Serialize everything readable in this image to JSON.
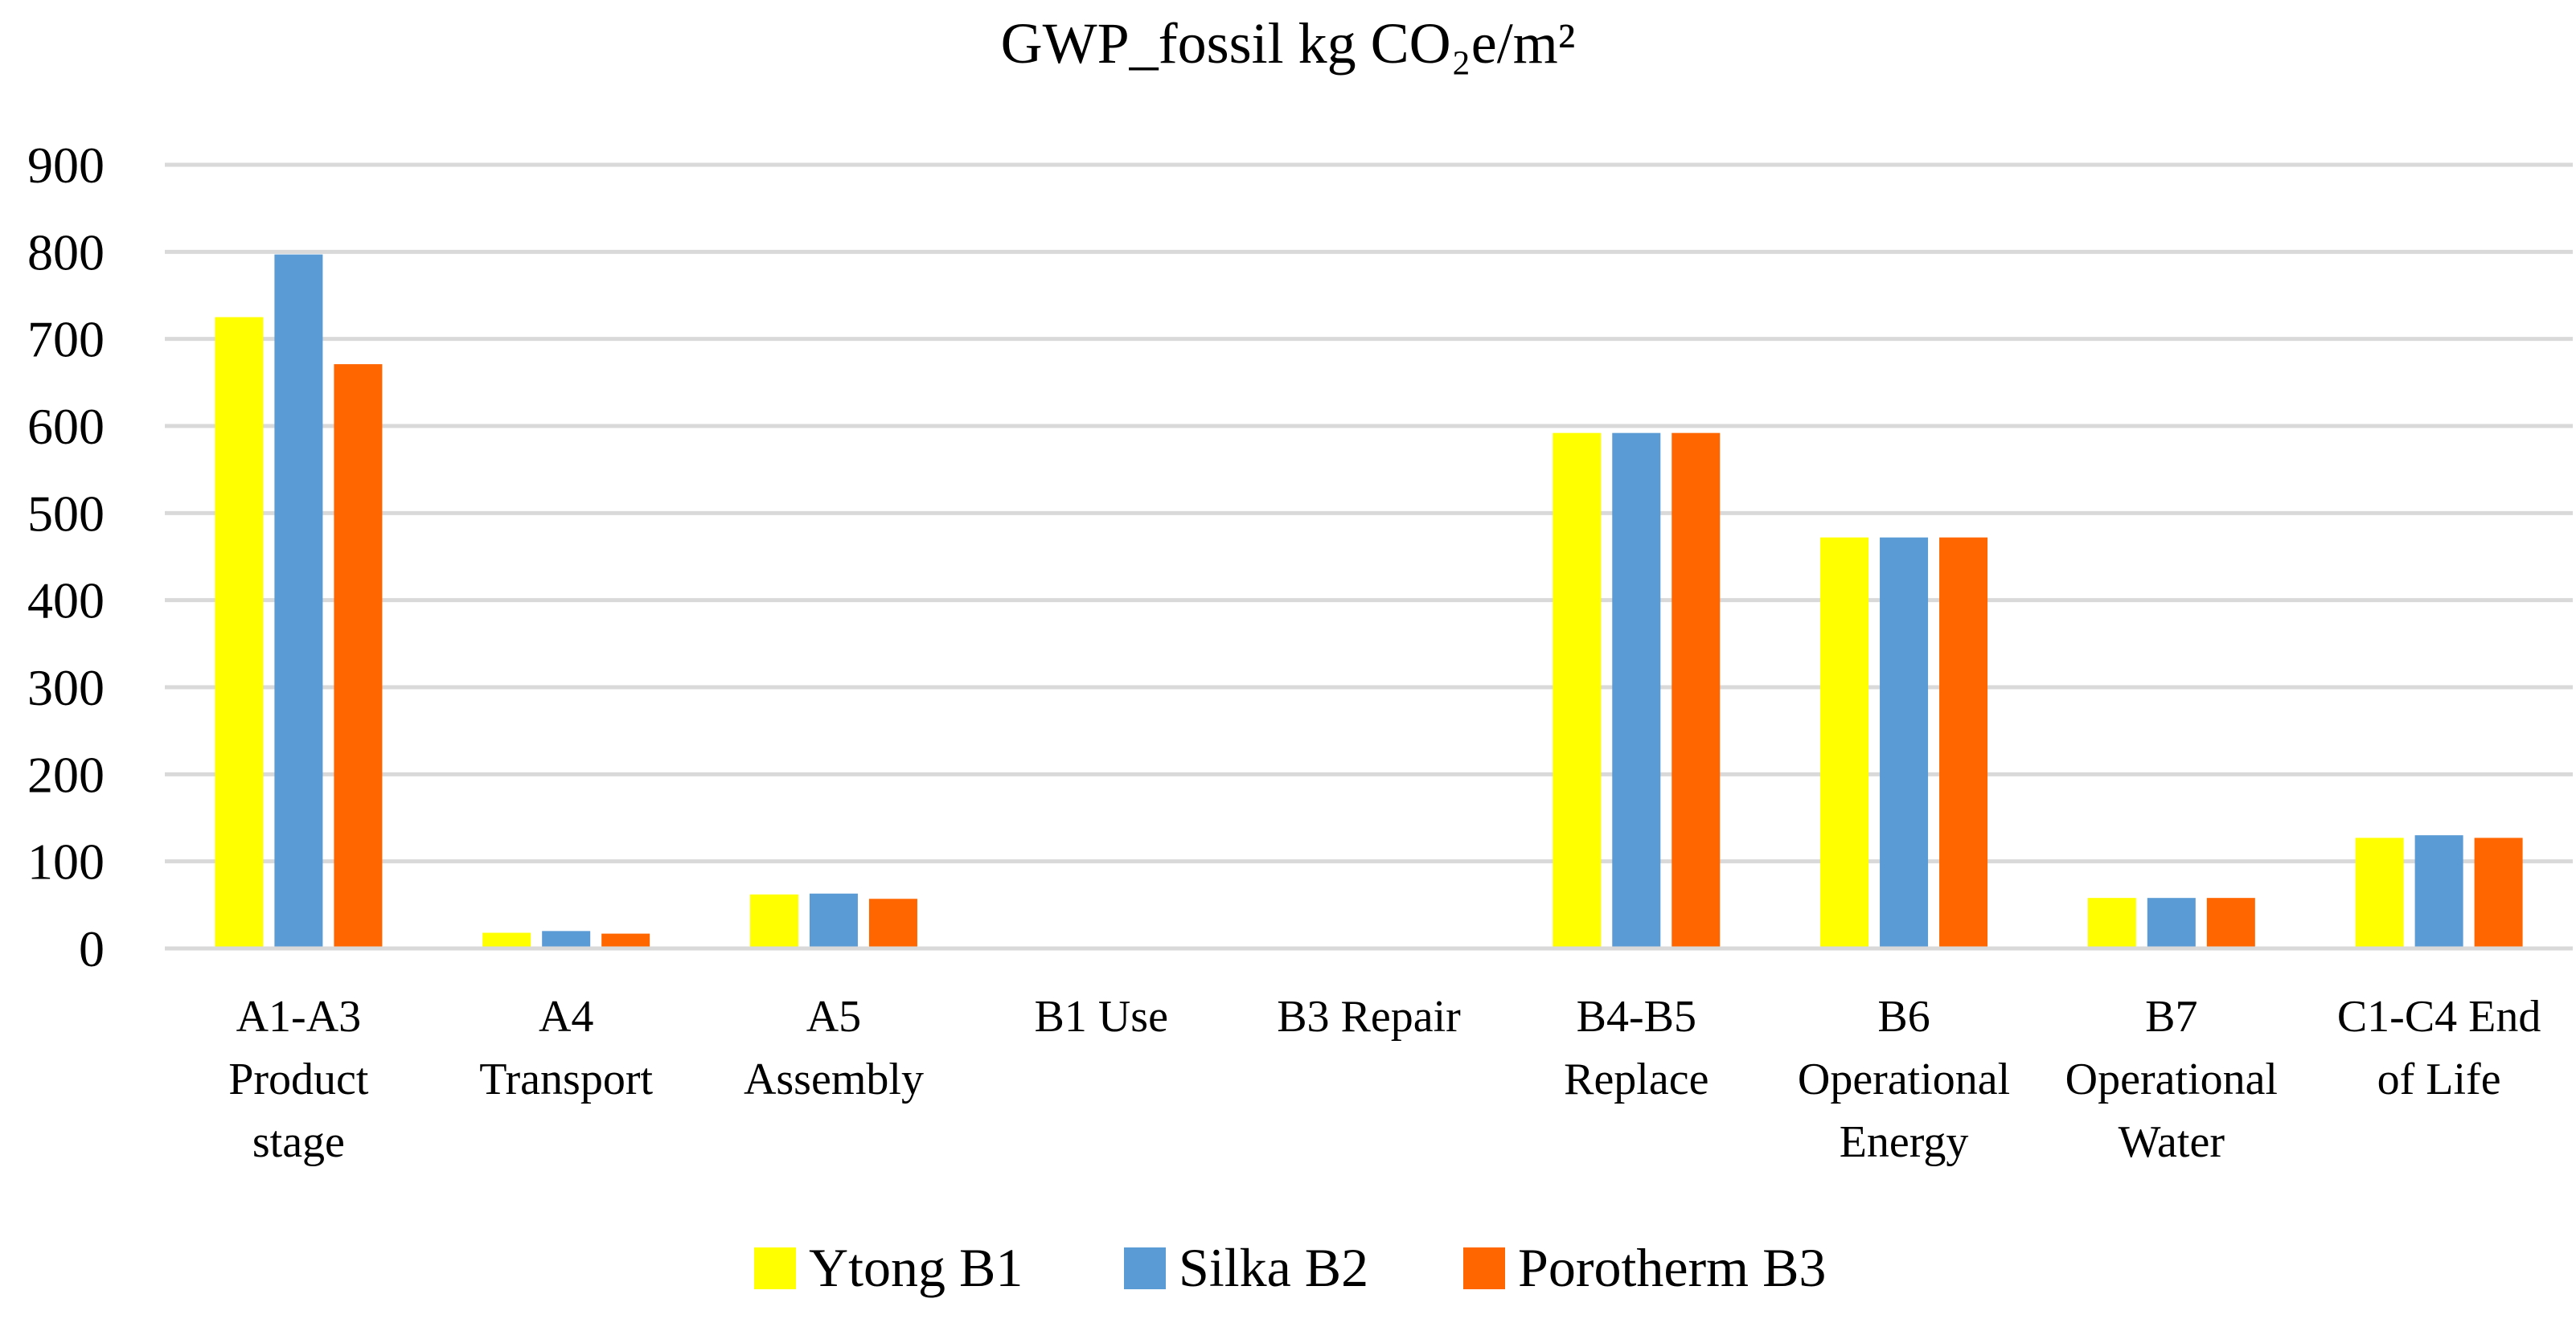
{
  "chart_data": {
    "type": "bar",
    "title": "GWP_fossil kg CO₂e/m²",
    "xlabel": "",
    "ylabel": "",
    "ylim": [
      0,
      900
    ],
    "yticks": [
      0,
      100,
      200,
      300,
      400,
      500,
      600,
      700,
      800,
      900
    ],
    "grid": true,
    "legend_position": "bottom",
    "categories": [
      [
        "A1-A3",
        "Product",
        "stage"
      ],
      [
        "A4",
        "Transport"
      ],
      [
        "A5",
        "Assembly"
      ],
      [
        "B1 Use"
      ],
      [
        "B3 Repair"
      ],
      [
        "B4-B5",
        "Replace"
      ],
      [
        "B6",
        "Operational",
        "Energy"
      ],
      [
        "B7",
        "Operational",
        "Water"
      ],
      [
        "C1-C4 End",
        "of Life"
      ]
    ],
    "series": [
      {
        "name": "Ytong B1",
        "color": "#FFFF00",
        "values": [
          725,
          18,
          62,
          0,
          0,
          592,
          472,
          58,
          127
        ]
      },
      {
        "name": "Silka B2",
        "color": "#5B9BD5",
        "values": [
          797,
          20,
          63,
          0,
          0,
          592,
          472,
          58,
          130
        ]
      },
      {
        "name": "Porotherm B3",
        "color": "#FF6600",
        "values": [
          671,
          17,
          57,
          0,
          0,
          592,
          472,
          58,
          127
        ]
      }
    ]
  }
}
